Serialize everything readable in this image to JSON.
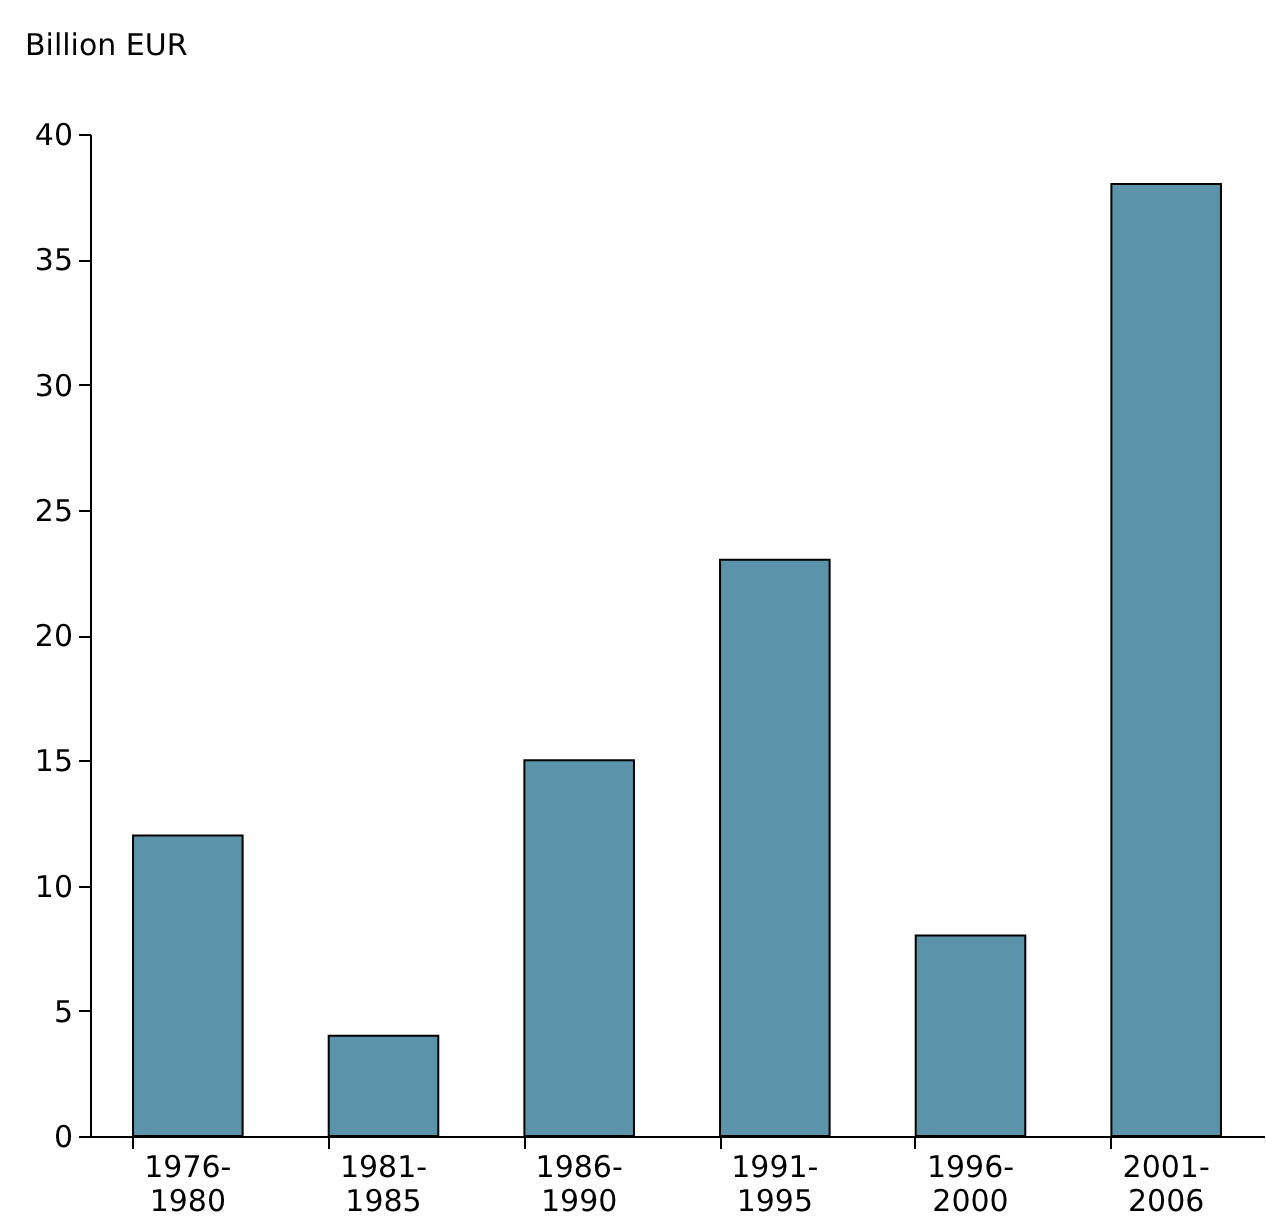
{
  "chart_data": {
    "type": "bar",
    "ylabel": "Billion EUR",
    "categories": [
      "1976-1980",
      "1981-1985",
      "1986-1990",
      "1991-1995",
      "1996-2000",
      "2001-2006"
    ],
    "values": [
      12,
      4,
      15,
      23,
      8,
      38
    ],
    "color": "#5a93aa",
    "ylim": [
      0,
      40
    ],
    "yticks": [
      0,
      5,
      10,
      15,
      20,
      25,
      30,
      35,
      40
    ],
    "grid": false
  }
}
